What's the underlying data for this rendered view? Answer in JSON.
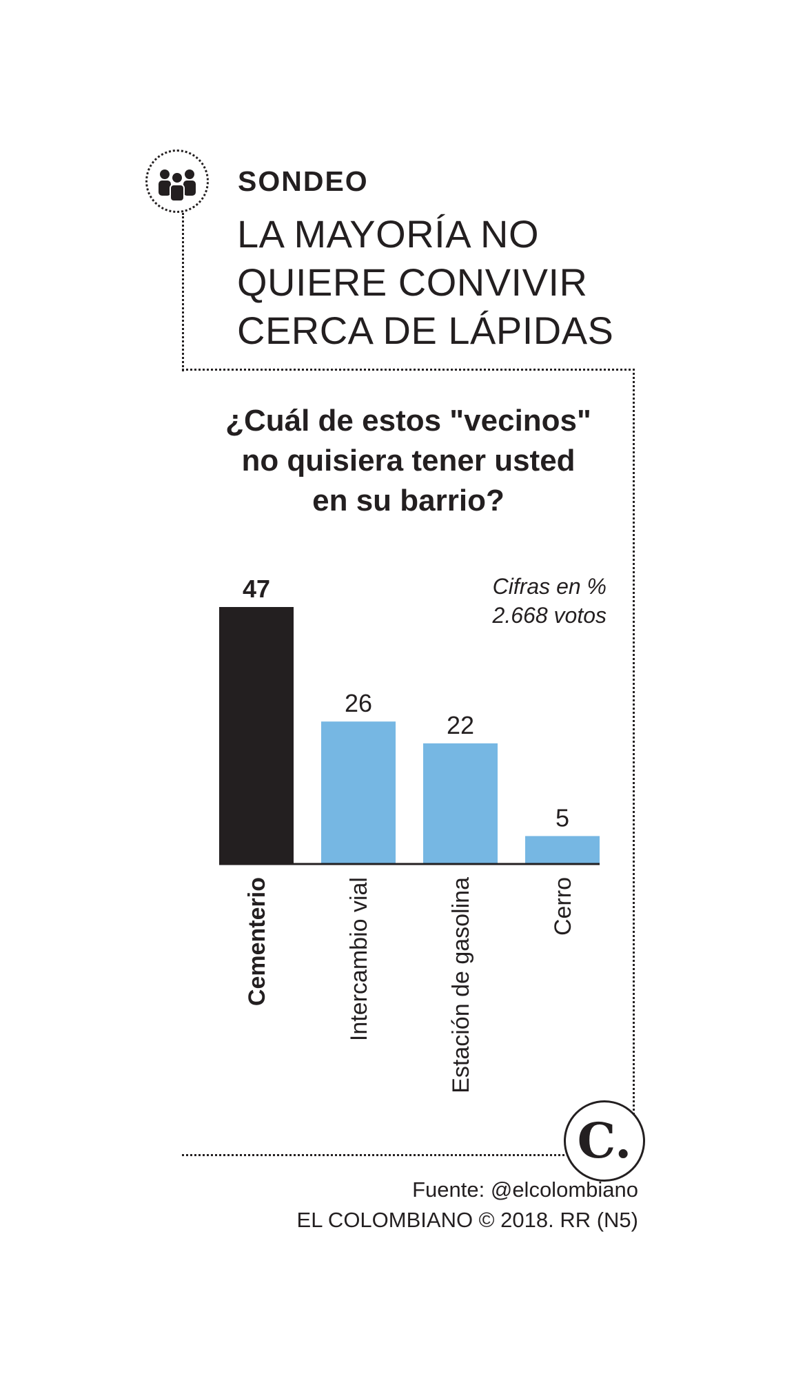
{
  "header": {
    "kicker": "SONDEO",
    "title_lines": [
      "LA MAYORÍA NO",
      "QUIERE CONVIVIR",
      "CERCA DE LÁPIDAS"
    ]
  },
  "chart_data": {
    "type": "bar",
    "title": "¿Cuál de estos \"vecinos\" no quisiera tener usted en su barrio?",
    "title_lines": [
      "¿Cuál de estos \"vecinos\"",
      "no quisiera tener usted",
      "en su barrio?"
    ],
    "note_lines": [
      "Cifras en %",
      "2.668 votos"
    ],
    "categories": [
      "Cementerio",
      "Intercambio vial",
      "Estación de gasolina",
      "Cerro"
    ],
    "values": [
      47,
      26,
      22,
      5
    ],
    "value_labels": [
      "47",
      "26",
      "22",
      "5"
    ],
    "highlight_index": 0,
    "ylim": [
      0,
      47
    ],
    "colors": {
      "highlight": "#231f20",
      "default": "#76b7e3",
      "text": "#231f20"
    }
  },
  "footer": {
    "source": "Fuente: @elcolombiano",
    "credit": "EL COLOMBIANO © 2018. RR (N5)"
  },
  "logo": {
    "letter": "C."
  },
  "icons": {
    "group": "people-group-icon"
  }
}
